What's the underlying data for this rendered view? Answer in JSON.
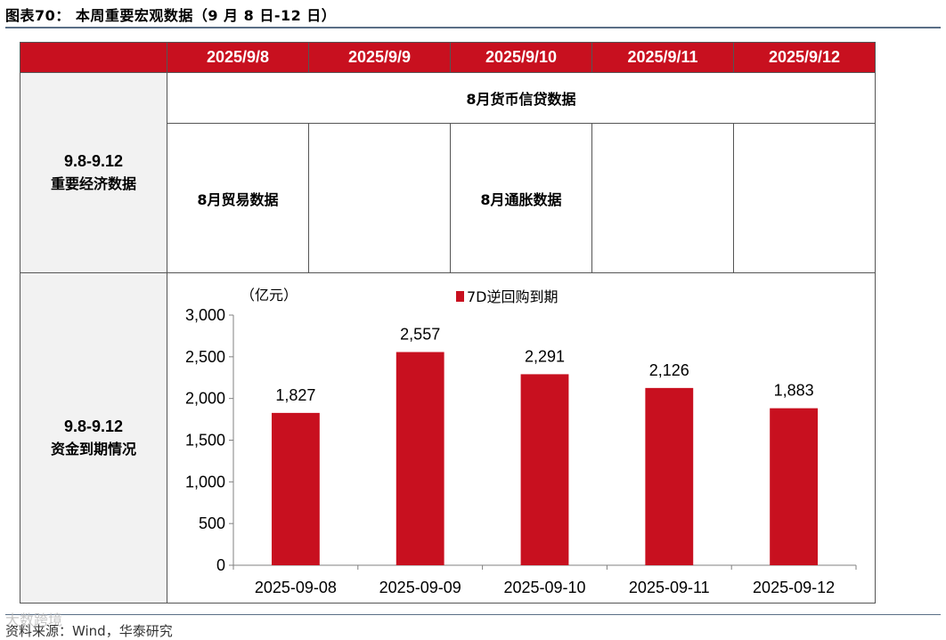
{
  "figure_title": "图表70： 本周重要宏观数据（9 月 8 日-12 日）",
  "table": {
    "columns": [
      "2025/9/8",
      "2025/9/9",
      "2025/9/10",
      "2025/9/11",
      "2025/9/12"
    ],
    "econ_row": {
      "label_line1": "9.8-9.12",
      "label_line2": "重要经济数据",
      "span_text": "8月货币信贷数据",
      "cells": [
        "8月贸易数据",
        "",
        "8月通胀数据",
        "",
        ""
      ]
    },
    "funds_row": {
      "label_line1": "9.8-9.12",
      "label_line2": "资金到期情况"
    }
  },
  "chart_data": {
    "type": "bar",
    "unit_label": "（亿元）",
    "categories": [
      "2025-09-08",
      "2025-09-09",
      "2025-09-10",
      "2025-09-11",
      "2025-09-12"
    ],
    "series": [
      {
        "name": "7D逆回购到期",
        "values": [
          1827,
          2557,
          2291,
          2126,
          1883
        ],
        "color": "#c8101f"
      }
    ],
    "data_labels": [
      "1,827",
      "2,557",
      "2,291",
      "2,126",
      "1,883"
    ],
    "yticks": [
      0,
      500,
      1000,
      1500,
      2000,
      2500,
      3000
    ],
    "ytick_labels": [
      "0",
      "500",
      "1,000",
      "1,500",
      "2,000",
      "2,500",
      "3,000"
    ],
    "ylim": [
      0,
      3000
    ],
    "legend_position": "top-center",
    "grid": false
  },
  "source": "资料来源：Wind，华泰研究",
  "watermark": "大数跨境",
  "colors": {
    "header_red": "#c8101f",
    "label_bg": "#f2f2f2",
    "rule": "#5a6f86"
  }
}
